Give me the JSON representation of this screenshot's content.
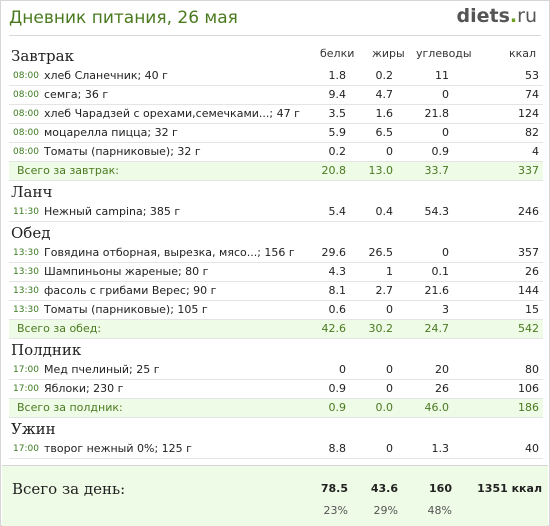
{
  "header": {
    "title": "Дневник питания, 26 мая",
    "logo_main": "diets",
    "logo_dot": ".",
    "logo_tld": "ru"
  },
  "columns": {
    "protein": "белки",
    "fat": "жиры",
    "carbs": "углеводы",
    "kcal": "ккал"
  },
  "meals": [
    {
      "name": "Завтрак",
      "items": [
        {
          "time": "08:00",
          "food": "хлеб Сланечник; 40 г",
          "protein": "1.8",
          "fat": "0.2",
          "carbs": "11",
          "kcal": "53"
        },
        {
          "time": "08:00",
          "food": "семга; 36 г",
          "protein": "9.4",
          "fat": "4.7",
          "carbs": "0",
          "kcal": "74"
        },
        {
          "time": "08:00",
          "food": "хлеб Чарадзей с орехами,семечками...; 47 г",
          "protein": "3.5",
          "fat": "1.6",
          "carbs": "21.8",
          "kcal": "124"
        },
        {
          "time": "08:00",
          "food": "моцарелла пицца; 32 г",
          "protein": "5.9",
          "fat": "6.5",
          "carbs": "0",
          "kcal": "82"
        },
        {
          "time": "08:00",
          "food": "Томаты (парниковые); 32 г",
          "protein": "0.2",
          "fat": "0",
          "carbs": "0.9",
          "kcal": "4"
        }
      ],
      "total": {
        "label": "Всего за завтрак:",
        "protein": "20.8",
        "fat": "13.0",
        "carbs": "33.7",
        "kcal": "337"
      }
    },
    {
      "name": "Ланч",
      "items": [
        {
          "time": "11:30",
          "food": "Нежный campina; 385 г",
          "protein": "5.4",
          "fat": "0.4",
          "carbs": "54.3",
          "kcal": "246"
        }
      ]
    },
    {
      "name": "Обед",
      "items": [
        {
          "time": "13:30",
          "food": "Говядина отборная, вырезка, мясо...; 156 г",
          "protein": "29.6",
          "fat": "26.5",
          "carbs": "0",
          "kcal": "357"
        },
        {
          "time": "13:30",
          "food": "Шампиньоны жареные; 80 г",
          "protein": "4.3",
          "fat": "1",
          "carbs": "0.1",
          "kcal": "26"
        },
        {
          "time": "13:30",
          "food": "фасоль с грибами Верес; 90 г",
          "protein": "8.1",
          "fat": "2.7",
          "carbs": "21.6",
          "kcal": "144"
        },
        {
          "time": "13:30",
          "food": "Томаты (парниковые); 105 г",
          "protein": "0.6",
          "fat": "0",
          "carbs": "3",
          "kcal": "15"
        }
      ],
      "total": {
        "label": "Всего за обед:",
        "protein": "42.6",
        "fat": "30.2",
        "carbs": "24.7",
        "kcal": "542"
      }
    },
    {
      "name": "Полдник",
      "items": [
        {
          "time": "17:00",
          "food": "Мед пчелиный; 25 г",
          "protein": "0",
          "fat": "0",
          "carbs": "20",
          "kcal": "80"
        },
        {
          "time": "17:00",
          "food": "Яблоки; 230 г",
          "protein": "0.9",
          "fat": "0",
          "carbs": "26",
          "kcal": "106"
        }
      ],
      "total": {
        "label": "Всего за полдник:",
        "protein": "0.9",
        "fat": "0.0",
        "carbs": "46.0",
        "kcal": "186"
      }
    },
    {
      "name": "Ужин",
      "items": [
        {
          "time": "17:00",
          "food": "творог нежный 0%; 125 г",
          "protein": "8.8",
          "fat": "0",
          "carbs": "1.3",
          "kcal": "40"
        }
      ]
    }
  ],
  "day_total": {
    "label": "Всего за день:",
    "protein": "78.5",
    "fat": "43.6",
    "carbs": "160",
    "kcal": "1351 ккал",
    "protein_pct": "23%",
    "fat_pct": "29%",
    "carbs_pct": "48%"
  },
  "colors": {
    "accent": "#4a7a1f",
    "total_bg": "#eefbe6"
  }
}
